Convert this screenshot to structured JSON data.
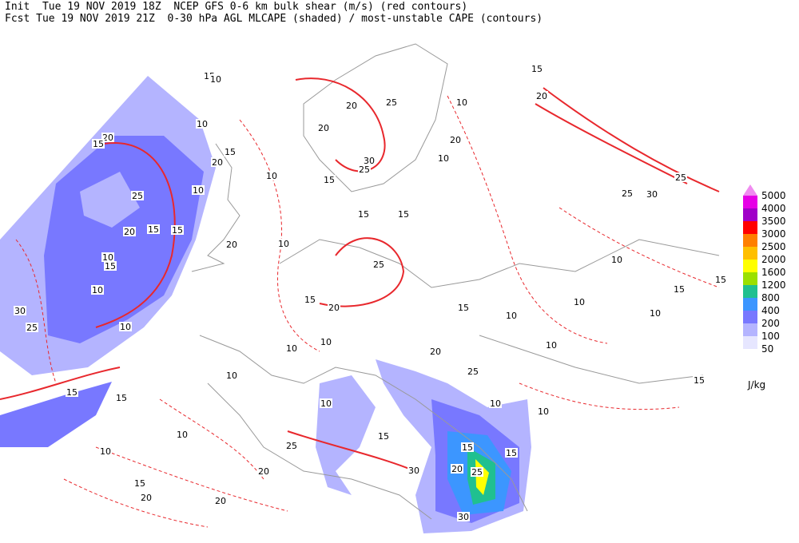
{
  "header": {
    "line1": "Init  Tue 19 NOV 2019 18Z  NCEP GFS 0-6 km bulk shear (m/s) (red contours)",
    "line2": "Fcst Tue 19 NOV 2019 21Z  0-30 hPa AGL MLCAPE (shaded) / most-unstable CAPE (contours)"
  },
  "legend": {
    "levels": [
      5000,
      4000,
      3500,
      3000,
      2500,
      2000,
      1600,
      1200,
      800,
      400,
      200,
      100,
      50
    ],
    "colors": [
      "#f08cf0",
      "#e600e6",
      "#a000c8",
      "#ff0000",
      "#ff7f00",
      "#ffbf00",
      "#ffff00",
      "#9be000",
      "#20c090",
      "#3c96ff",
      "#7878ff",
      "#b4b4ff",
      "#e6e6ff"
    ],
    "unit": "J/kg"
  },
  "contour_labels": [
    15,
    10,
    10,
    20,
    15,
    20,
    15,
    10,
    25,
    20,
    15,
    15,
    10,
    15,
    20,
    10,
    10,
    25,
    30,
    15,
    15,
    10,
    20,
    25,
    20,
    30,
    25,
    15,
    15,
    15,
    25,
    20,
    15,
    10,
    10,
    20,
    10,
    15,
    20,
    25,
    30,
    25,
    10,
    15,
    15,
    10,
    10,
    10,
    10,
    20,
    15,
    10,
    10,
    15,
    10,
    15,
    20,
    25,
    30,
    15,
    25,
    20,
    20,
    20,
    15,
    10,
    10,
    10,
    15,
    30,
    10,
    25,
    10
  ]
}
